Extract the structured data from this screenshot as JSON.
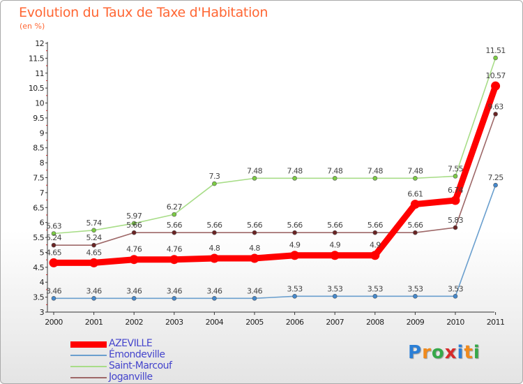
{
  "title": "Evolution du Taux de Taxe d'Habitation",
  "subtitle": "(en %)",
  "logo": {
    "text": "Proxiti",
    "letter_colors": [
      "#2b7fd6",
      "#f08a1c",
      "#36a84a",
      "#d72b2b",
      "#2b7fd6",
      "#f08a1c",
      "#36a84a"
    ]
  },
  "chart_data": {
    "type": "line",
    "x": [
      "2000",
      "2001",
      "2002",
      "2003",
      "2004",
      "2005",
      "2006",
      "2007",
      "2008",
      "2009",
      "2010",
      "2011"
    ],
    "ylim": [
      3,
      12
    ],
    "yticks": [
      "3",
      "3.5",
      "4",
      "4.5",
      "5",
      "5.5",
      "6",
      "6.5",
      "7",
      "7.5",
      "8",
      "8.5",
      "9",
      "9.5",
      "10",
      "10.5",
      "11",
      "11.5",
      "12"
    ],
    "grid": false,
    "legend_position": "bottom-left",
    "series": [
      {
        "name": "Émondeville",
        "color": "#6a9fce",
        "marker_color": "#4488cc",
        "values": [
          3.46,
          3.46,
          3.46,
          3.46,
          3.46,
          3.46,
          3.53,
          3.53,
          3.53,
          3.53,
          3.53,
          7.25
        ],
        "labels": [
          "3.46",
          "3.46",
          "3.46",
          "3.46",
          "3.46",
          "3.46",
          "3.53",
          "3.53",
          "3.53",
          "3.53",
          "3.53",
          "7.25"
        ]
      },
      {
        "name": "Saint-Marcouf",
        "color": "#a8dd88",
        "marker_color": "#7ccc44",
        "values": [
          5.63,
          5.74,
          5.97,
          6.27,
          7.3,
          7.48,
          7.48,
          7.48,
          7.48,
          7.48,
          7.55,
          11.51
        ],
        "labels": [
          "5.63",
          "5.74",
          "5.97",
          "6.27",
          "7.3",
          "7.48",
          "7.48",
          "7.48",
          "7.48",
          "7.48",
          "7.55",
          "11.51"
        ]
      },
      {
        "name": "Joganville",
        "color": "#9e6868",
        "marker_color": "#6b2424",
        "values": [
          5.24,
          5.24,
          5.66,
          5.66,
          5.66,
          5.66,
          5.66,
          5.66,
          5.66,
          5.66,
          5.83,
          9.63
        ],
        "labels": [
          "5.24",
          "5.24",
          "5.66",
          "5.66",
          "5.66",
          "5.66",
          "5.66",
          "5.66",
          "5.66",
          "5.66",
          "5.83",
          "9.63"
        ]
      },
      {
        "name": "AZEVILLE",
        "color": "#ff0000",
        "marker_color": "#ff0000",
        "highlight": true,
        "values": [
          4.65,
          4.65,
          4.76,
          4.76,
          4.8,
          4.8,
          4.9,
          4.9,
          4.9,
          6.61,
          6.74,
          10.57
        ],
        "labels": [
          "4.65",
          "4.65",
          "4.76",
          "4.76",
          "4.8",
          "4.8",
          "4.9",
          "4.9",
          "4.9",
          "6.61",
          "6.74",
          "10.57"
        ]
      }
    ],
    "legend_order": [
      "AZEVILLE",
      "Émondeville",
      "Saint-Marcouf",
      "Joganville"
    ]
  }
}
